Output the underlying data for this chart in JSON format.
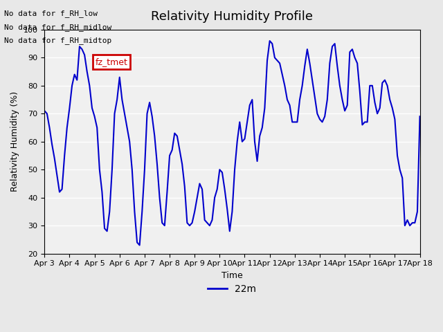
{
  "title": "Relativity Humidity Profile",
  "xlabel": "Time",
  "ylabel": "Relativity Humidity (%)",
  "ylim": [
    20,
    100
  ],
  "bg_color": "#e8e8e8",
  "plot_bg_color": "#f0f0f0",
  "line_color": "#0000cc",
  "line_width": 1.5,
  "legend_label": "22m",
  "legend_line_color": "#0000cc",
  "xtick_labels": [
    "Apr 3",
    "Apr 4",
    "Apr 5",
    "Apr 6",
    "Apr 7",
    "Apr 8",
    "Apr 9",
    "Apr 10",
    "Apr 11",
    "Apr 12",
    "Apr 13",
    "Apr 14",
    "Apr 15",
    "Apr 16",
    "Apr 17",
    "Apr 18"
  ],
  "annotation_lines": [
    "No data for f_RH_low",
    "No data for f_RH_midlow",
    "No data for f_RH_midtop"
  ],
  "legend_box_color": "#cc0000",
  "legend_box_text": "fz_tmet",
  "yticks": [
    20,
    30,
    40,
    50,
    60,
    70,
    80,
    90,
    100
  ],
  "x_values": [
    0,
    0.1,
    0.2,
    0.3,
    0.4,
    0.5,
    0.6,
    0.7,
    0.8,
    0.9,
    1.0,
    1.1,
    1.2,
    1.3,
    1.4,
    1.5,
    1.6,
    1.7,
    1.8,
    1.9,
    2.0,
    2.1,
    2.2,
    2.3,
    2.4,
    2.5,
    2.6,
    2.7,
    2.8,
    2.9,
    3.0,
    3.1,
    3.2,
    3.3,
    3.4,
    3.5,
    3.6,
    3.7,
    3.8,
    3.9,
    4.0,
    4.1,
    4.2,
    4.3,
    4.4,
    4.5,
    4.6,
    4.7,
    4.8,
    4.9,
    5.0,
    5.1,
    5.2,
    5.3,
    5.4,
    5.5,
    5.6,
    5.7,
    5.8,
    5.9,
    6.0,
    6.1,
    6.2,
    6.3,
    6.4,
    6.5,
    6.6,
    6.7,
    6.8,
    6.9,
    7.0,
    7.1,
    7.2,
    7.3,
    7.4,
    7.5,
    7.6,
    7.7,
    7.8,
    7.9,
    8.0,
    8.1,
    8.2,
    8.3,
    8.4,
    8.5,
    8.6,
    8.7,
    8.8,
    8.9,
    9.0,
    9.1,
    9.2,
    9.3,
    9.4,
    9.5,
    9.6,
    9.7,
    9.8,
    9.9,
    10.0,
    10.1,
    10.2,
    10.3,
    10.4,
    10.5,
    10.6,
    10.7,
    10.8,
    10.9,
    11.0,
    11.1,
    11.2,
    11.3,
    11.4,
    11.5,
    11.6,
    11.7,
    11.8,
    11.9,
    12.0,
    12.1,
    12.2,
    12.3,
    12.4,
    12.5,
    12.6,
    12.7,
    12.8,
    12.9,
    13.0,
    13.1,
    13.2,
    13.3,
    13.4,
    13.5,
    13.6,
    13.7,
    13.8,
    13.9,
    14.0,
    14.1,
    14.2,
    14.3,
    14.4,
    14.5,
    14.6,
    14.7,
    14.8,
    14.9,
    15.0
  ],
  "y_values": [
    71,
    70,
    65,
    59,
    54,
    48,
    42,
    43,
    55,
    65,
    72,
    80,
    84,
    82,
    94,
    93,
    91,
    85,
    80,
    72,
    69,
    65,
    50,
    42,
    29,
    28,
    35,
    50,
    70,
    75,
    83,
    75,
    70,
    65,
    60,
    50,
    35,
    24,
    23,
    35,
    50,
    70,
    74,
    69,
    62,
    52,
    40,
    31,
    30,
    42,
    55,
    57,
    63,
    62,
    57,
    52,
    44,
    31,
    30,
    31,
    35,
    40,
    45,
    43,
    32,
    31,
    30,
    32,
    40,
    43,
    50,
    49,
    43,
    36,
    28,
    35,
    50,
    60,
    67,
    60,
    61,
    67,
    73,
    75,
    60,
    53,
    62,
    65,
    72,
    89,
    96,
    95,
    90,
    89,
    88,
    84,
    80,
    75,
    73,
    67,
    67,
    67,
    75,
    80,
    87,
    93,
    88,
    82,
    76,
    70,
    68,
    67,
    69,
    75,
    88,
    94,
    95,
    87,
    80,
    75,
    71,
    73,
    92,
    93,
    90,
    88,
    78,
    66,
    67,
    67,
    80,
    80,
    74,
    70,
    72,
    81,
    82,
    80,
    75,
    72,
    68,
    55,
    50,
    47,
    30,
    32,
    30,
    31,
    31,
    35,
    69
  ]
}
